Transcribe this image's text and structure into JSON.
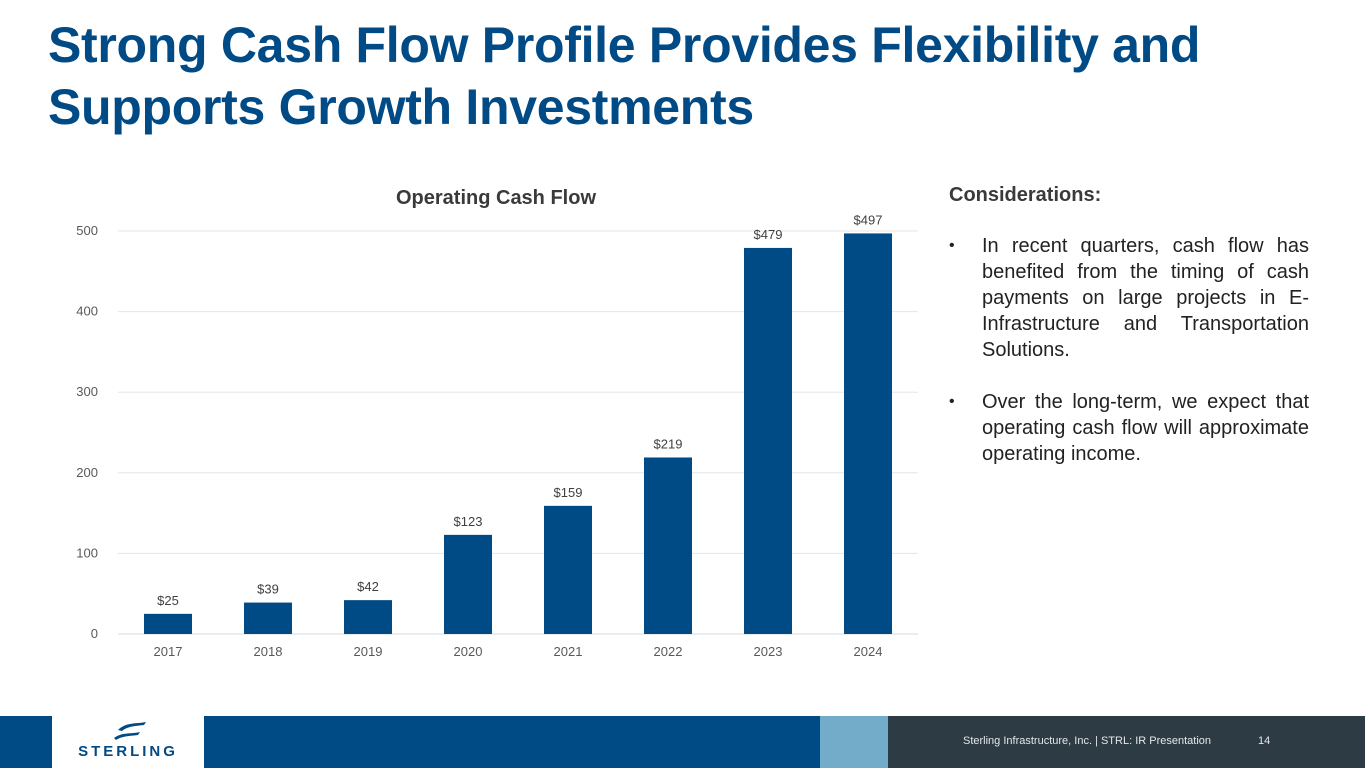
{
  "slide": {
    "title": "Strong Cash Flow Profile Provides Flexibility and Supports Growth Investments"
  },
  "chart_data": {
    "type": "bar",
    "title": "Operating Cash Flow",
    "categories": [
      "2017",
      "2018",
      "2019",
      "2020",
      "2021",
      "2022",
      "2023",
      "2024"
    ],
    "values": [
      25,
      39,
      42,
      123,
      159,
      219,
      479,
      497
    ],
    "data_labels": [
      "$25",
      "$39",
      "$42",
      "$123",
      "$159",
      "$219",
      "$479",
      "$497"
    ],
    "ylim": [
      0,
      500
    ],
    "yticks": [
      0,
      100,
      200,
      300,
      400,
      500
    ],
    "xlabel": "",
    "ylabel": "",
    "grid": true,
    "bar_color": "#004a85"
  },
  "considerations": {
    "heading": "Considerations:",
    "bullets": [
      "In recent quarters, cash flow has benefited from the timing of cash payments on large projects in E-Infrastructure and Transportation Solutions.",
      "Over the long-term, we expect that operating cash flow will approximate operating income."
    ]
  },
  "footer": {
    "logo": "STERLING",
    "text": "Sterling Infrastructure, Inc. | STRL:  IR Presentation",
    "page": "14"
  },
  "colors": {
    "primary": "#004a85",
    "accent": "#72acc8",
    "footer_dark": "#2d3b45"
  }
}
